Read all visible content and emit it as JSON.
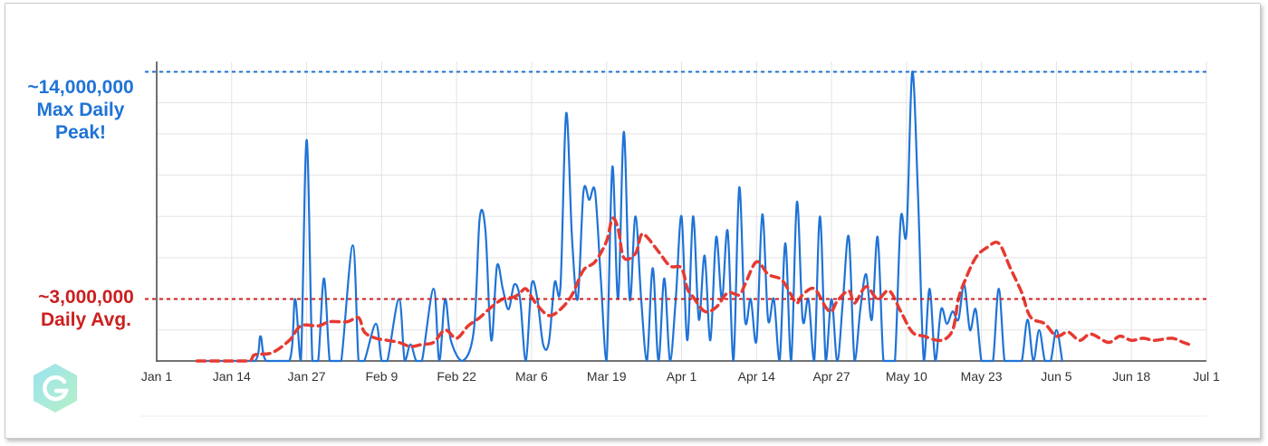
{
  "chart_data": {
    "type": "line",
    "x": [
      "Jan 1",
      "Jan 14",
      "Jan 27",
      "Feb 9",
      "Feb 22",
      "Mar 6",
      "Mar 19",
      "Apr 1",
      "Apr 14",
      "Apr 27",
      "May 10",
      "May 23",
      "Jun 5",
      "Jun 18",
      "Jul 1"
    ],
    "xlim_days": [
      0,
      182
    ],
    "ylim": [
      0,
      14500000
    ],
    "grid": true,
    "series": [
      {
        "color": "#1f73d6",
        "points": [
          [
            7,
            0
          ],
          [
            12,
            0
          ],
          [
            17,
            0
          ],
          [
            18,
            1200000
          ],
          [
            19,
            0
          ],
          [
            23,
            0
          ],
          [
            24,
            3000000
          ],
          [
            25,
            0
          ],
          [
            26,
            10700000
          ],
          [
            27,
            0
          ],
          [
            28,
            0
          ],
          [
            29,
            4000000
          ],
          [
            30,
            0
          ],
          [
            31,
            0
          ],
          [
            32,
            0
          ],
          [
            34,
            5600000
          ],
          [
            35,
            0
          ],
          [
            36,
            0
          ],
          [
            38,
            1800000
          ],
          [
            39,
            0
          ],
          [
            40,
            0
          ],
          [
            42,
            3000000
          ],
          [
            43,
            0
          ],
          [
            44,
            800000
          ],
          [
            45,
            0
          ],
          [
            46,
            0
          ],
          [
            48,
            3500000
          ],
          [
            49,
            0
          ],
          [
            50,
            3000000
          ],
          [
            51,
            1000000
          ],
          [
            53,
            0
          ],
          [
            55,
            1500000
          ],
          [
            56,
            6900000
          ],
          [
            57,
            6300000
          ],
          [
            58,
            1000000
          ],
          [
            59,
            4600000
          ],
          [
            60,
            3500000
          ],
          [
            61,
            2500000
          ],
          [
            62,
            3700000
          ],
          [
            63,
            3000000
          ],
          [
            64,
            0
          ],
          [
            65,
            3700000
          ],
          [
            66,
            3000000
          ],
          [
            67,
            800000
          ],
          [
            68,
            900000
          ],
          [
            69,
            3800000
          ],
          [
            70,
            3600000
          ],
          [
            71,
            12000000
          ],
          [
            72,
            6000000
          ],
          [
            73,
            3000000
          ],
          [
            74,
            8200000
          ],
          [
            75,
            7800000
          ],
          [
            76,
            8200000
          ],
          [
            77,
            4000000
          ],
          [
            78,
            0
          ],
          [
            79,
            9400000
          ],
          [
            80,
            3000000
          ],
          [
            81,
            11100000
          ],
          [
            82,
            3000000
          ],
          [
            83,
            7000000
          ],
          [
            84,
            3000000
          ],
          [
            85,
            0
          ],
          [
            86,
            4500000
          ],
          [
            87,
            0
          ],
          [
            88,
            4000000
          ],
          [
            89,
            0
          ],
          [
            90,
            3000000
          ],
          [
            91,
            7000000
          ],
          [
            92,
            1000000
          ],
          [
            93,
            7000000
          ],
          [
            94,
            2000000
          ],
          [
            95,
            5100000
          ],
          [
            96,
            1000000
          ],
          [
            97,
            6000000
          ],
          [
            98,
            3000000
          ],
          [
            99,
            6300000
          ],
          [
            100,
            0
          ],
          [
            101,
            8400000
          ],
          [
            102,
            2000000
          ],
          [
            103,
            3000000
          ],
          [
            104,
            1000000
          ],
          [
            105,
            7100000
          ],
          [
            106,
            2000000
          ],
          [
            107,
            3000000
          ],
          [
            108,
            0
          ],
          [
            109,
            5700000
          ],
          [
            110,
            0
          ],
          [
            111,
            7700000
          ],
          [
            112,
            2000000
          ],
          [
            113,
            3000000
          ],
          [
            114,
            0
          ],
          [
            115,
            7000000
          ],
          [
            116,
            0
          ],
          [
            117,
            3000000
          ],
          [
            118,
            0
          ],
          [
            119,
            3000000
          ],
          [
            120,
            6000000
          ],
          [
            121,
            0
          ],
          [
            122,
            2500000
          ],
          [
            123,
            4200000
          ],
          [
            124,
            2000000
          ],
          [
            125,
            6000000
          ],
          [
            126,
            0
          ],
          [
            127,
            0
          ],
          [
            128,
            0
          ],
          [
            129,
            6900000
          ],
          [
            130,
            6200000
          ],
          [
            131,
            14000000
          ],
          [
            132,
            8000000
          ],
          [
            133,
            0
          ],
          [
            134,
            3500000
          ],
          [
            135,
            0
          ],
          [
            136,
            2500000
          ],
          [
            137,
            1800000
          ],
          [
            138,
            2400000
          ],
          [
            139,
            2000000
          ],
          [
            140,
            3700000
          ],
          [
            141,
            1500000
          ],
          [
            142,
            2500000
          ],
          [
            143,
            0
          ],
          [
            144,
            0
          ],
          [
            145,
            0
          ],
          [
            146,
            3500000
          ],
          [
            147,
            0
          ],
          [
            148,
            0
          ],
          [
            149,
            0
          ],
          [
            150,
            0
          ],
          [
            151,
            2000000
          ],
          [
            152,
            0
          ],
          [
            153,
            1500000
          ],
          [
            154,
            0
          ],
          [
            155,
            0
          ],
          [
            156,
            1500000
          ],
          [
            157,
            0
          ]
        ]
      },
      {
        "color": "#e63a32",
        "dashed": true,
        "points": [
          [
            7,
            0
          ],
          [
            12,
            0
          ],
          [
            16,
            0
          ],
          [
            17,
            300000
          ],
          [
            20,
            400000
          ],
          [
            23,
            1000000
          ],
          [
            25,
            1700000
          ],
          [
            28,
            1700000
          ],
          [
            30,
            1900000
          ],
          [
            33,
            1900000
          ],
          [
            35,
            2100000
          ],
          [
            36,
            1400000
          ],
          [
            38,
            1100000
          ],
          [
            40,
            1000000
          ],
          [
            42,
            900000
          ],
          [
            44,
            700000
          ],
          [
            46,
            800000
          ],
          [
            48,
            900000
          ],
          [
            50,
            1500000
          ],
          [
            52,
            1100000
          ],
          [
            54,
            1700000
          ],
          [
            56,
            2100000
          ],
          [
            58,
            2600000
          ],
          [
            60,
            3000000
          ],
          [
            62,
            3100000
          ],
          [
            63,
            3300000
          ],
          [
            64,
            3500000
          ],
          [
            65,
            3100000
          ],
          [
            66,
            2700000
          ],
          [
            68,
            2200000
          ],
          [
            70,
            2500000
          ],
          [
            72,
            3200000
          ],
          [
            74,
            4400000
          ],
          [
            76,
            4800000
          ],
          [
            78,
            5800000
          ],
          [
            79,
            6900000
          ],
          [
            80,
            6400000
          ],
          [
            81,
            5000000
          ],
          [
            83,
            5200000
          ],
          [
            84,
            6100000
          ],
          [
            85,
            6000000
          ],
          [
            87,
            5300000
          ],
          [
            89,
            4600000
          ],
          [
            91,
            4500000
          ],
          [
            92,
            3500000
          ],
          [
            93,
            3100000
          ],
          [
            95,
            2400000
          ],
          [
            97,
            2600000
          ],
          [
            99,
            3300000
          ],
          [
            101,
            3200000
          ],
          [
            102,
            3700000
          ],
          [
            104,
            4800000
          ],
          [
            106,
            4200000
          ],
          [
            108,
            4000000
          ],
          [
            109,
            3700000
          ],
          [
            110,
            3200000
          ],
          [
            111,
            2800000
          ],
          [
            112,
            3200000
          ],
          [
            114,
            3500000
          ],
          [
            116,
            2600000
          ],
          [
            117,
            2400000
          ],
          [
            118,
            2900000
          ],
          [
            120,
            3400000
          ],
          [
            121,
            2800000
          ],
          [
            123,
            3600000
          ],
          [
            125,
            3000000
          ],
          [
            127,
            3400000
          ],
          [
            129,
            2400000
          ],
          [
            131,
            1400000
          ],
          [
            133,
            1200000
          ],
          [
            136,
            1000000
          ],
          [
            138,
            1500000
          ],
          [
            139,
            3000000
          ],
          [
            140,
            3800000
          ],
          [
            142,
            5000000
          ],
          [
            144,
            5500000
          ],
          [
            146,
            5700000
          ],
          [
            148,
            4500000
          ],
          [
            150,
            3300000
          ],
          [
            151,
            2400000
          ],
          [
            152,
            2000000
          ],
          [
            154,
            1800000
          ],
          [
            156,
            1200000
          ],
          [
            158,
            1400000
          ],
          [
            160,
            1000000
          ],
          [
            162,
            1300000
          ],
          [
            165,
            900000
          ],
          [
            167,
            1200000
          ],
          [
            169,
            1000000
          ],
          [
            171,
            1100000
          ],
          [
            173,
            1000000
          ],
          [
            176,
            1100000
          ],
          [
            178,
            900000
          ],
          [
            179,
            800000
          ]
        ]
      }
    ],
    "annotations": [
      {
        "lines": [
          "~14,000,000",
          "Max Daily",
          "Peak!"
        ],
        "y": 14000000,
        "color": "#1f73d6"
      },
      {
        "lines": [
          "~3,000,000",
          "Daily Avg."
        ],
        "y": 3000000,
        "color": "#cc1f1f"
      }
    ]
  }
}
